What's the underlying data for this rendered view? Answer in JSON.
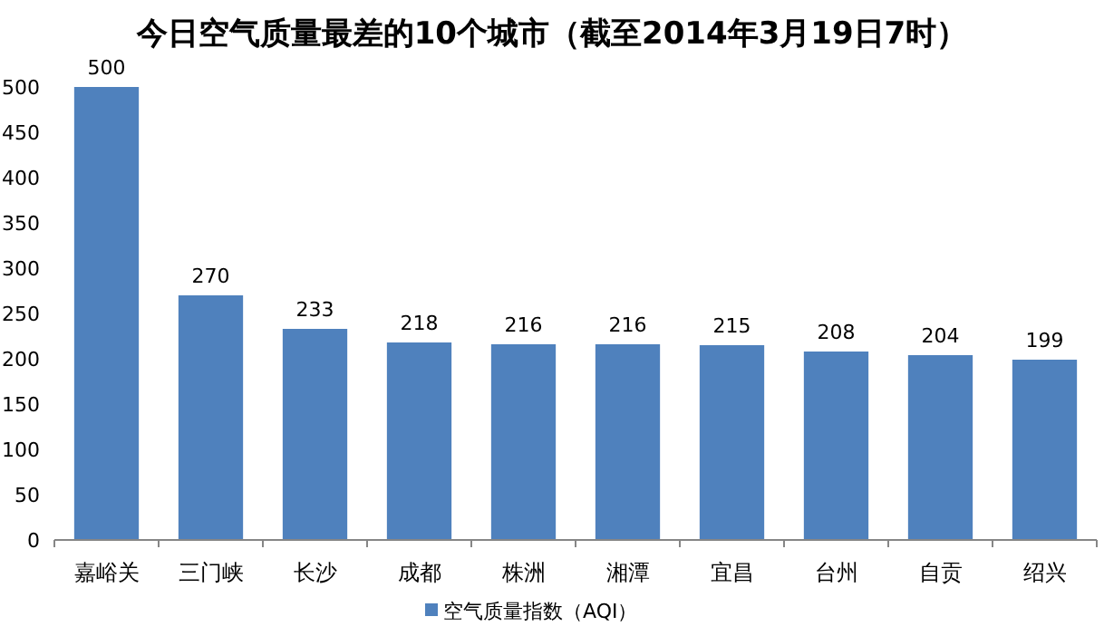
{
  "chart_data": {
    "type": "bar",
    "title": "今日空气质量最差的10个城市（截至2014年3月19日7时）",
    "categories": [
      "嘉峪关",
      "三门峡",
      "长沙",
      "成都",
      "株洲",
      "湘潭",
      "宜昌",
      "台州",
      "自贡",
      "绍兴"
    ],
    "series": [
      {
        "name": "空气质量指数（AQI）",
        "color": "#4f81bd",
        "values": [
          500,
          270,
          233,
          218,
          216,
          216,
          215,
          208,
          204,
          199
        ]
      }
    ],
    "ylim": [
      0,
      500
    ],
    "yticks": [
      0,
      50,
      100,
      150,
      200,
      250,
      300,
      350,
      400,
      450,
      500
    ],
    "data_labels": true,
    "legend": "bottom",
    "grid": false
  }
}
